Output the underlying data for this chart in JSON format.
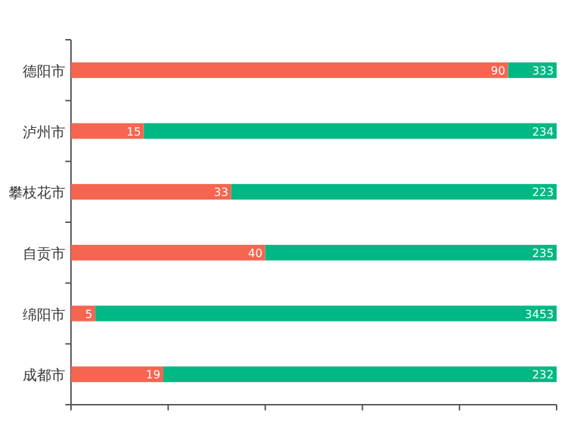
{
  "chart_data": {
    "type": "bar",
    "orientation": "horizontal",
    "stacked": true,
    "tick_labels": "y",
    "categories": [
      "德阳市",
      "泸州市",
      "攀枝花市",
      "自贡市",
      "绵阳市",
      "成都市"
    ],
    "xlim": [
      0,
      100
    ],
    "xticks": [
      {
        "value": 0,
        "label": null
      },
      {
        "value": 20,
        "label": null
      },
      {
        "value": 40,
        "label": null
      },
      {
        "value": 60,
        "label": null
      },
      {
        "value": 80,
        "label": null
      },
      {
        "value": 100,
        "label": null
      }
    ],
    "series": [
      {
        "color": "#f66550",
        "values": [
          90,
          15,
          33,
          40,
          5,
          19
        ],
        "value_labels": [
          "90",
          "15",
          "33",
          "40",
          "5",
          "19"
        ]
      },
      {
        "color": "#00b884",
        "values": [
          10,
          85,
          67,
          60,
          95,
          81
        ]
      }
    ],
    "annotations": [
      {
        "text": "333",
        "y": "德阳市"
      },
      {
        "text": "234",
        "y": "泸州市"
      },
      {
        "text": "223",
        "y": "攀枝花市"
      },
      {
        "text": "235",
        "y": "自贡市"
      },
      {
        "text": "3453",
        "y": "绵阳市"
      },
      {
        "text": "232",
        "y": "成都市"
      }
    ]
  }
}
